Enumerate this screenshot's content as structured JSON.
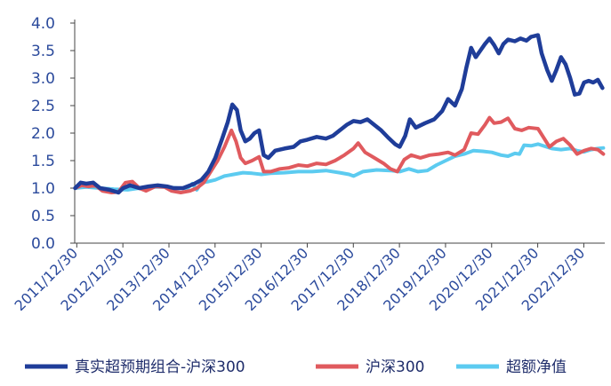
{
  "chart_data": {
    "type": "line",
    "title": "",
    "xlabel": "",
    "ylabel": "",
    "ylim": [
      0,
      4
    ],
    "y_ticks": [
      "0.0",
      "0.5",
      "1.0",
      "1.5",
      "2.0",
      "2.5",
      "3.0",
      "3.5",
      "4.0"
    ],
    "x_tick_labels": [
      "2011/12/30",
      "2012/12/30",
      "2013/12/30",
      "2014/12/30",
      "2015/12/30",
      "2016/12/30",
      "2017/12/30",
      "2018/12/30",
      "2019/12/30",
      "2020/12/30",
      "2021/12/30",
      "2022/12/30"
    ],
    "x_range": [
      2011.95,
      2023.45
    ],
    "grid": false,
    "legend_position": "bottom",
    "series": [
      {
        "name": "真实超预期组合-沪深300",
        "color": "#1F3D99",
        "points": [
          [
            2011.96,
            1.0
          ],
          [
            2012.08,
            1.1
          ],
          [
            2012.2,
            1.08
          ],
          [
            2012.35,
            1.1
          ],
          [
            2012.5,
            1.0
          ],
          [
            2012.7,
            0.97
          ],
          [
            2012.9,
            0.92
          ],
          [
            2013.0,
            1.0
          ],
          [
            2013.15,
            1.05
          ],
          [
            2013.35,
            1.0
          ],
          [
            2013.55,
            1.03
          ],
          [
            2013.75,
            1.05
          ],
          [
            2013.95,
            1.03
          ],
          [
            2014.1,
            1.0
          ],
          [
            2014.3,
            1.0
          ],
          [
            2014.55,
            1.08
          ],
          [
            2014.7,
            1.15
          ],
          [
            2014.85,
            1.3
          ],
          [
            2015.0,
            1.55
          ],
          [
            2015.15,
            1.9
          ],
          [
            2015.27,
            2.2
          ],
          [
            2015.37,
            2.52
          ],
          [
            2015.47,
            2.42
          ],
          [
            2015.55,
            2.05
          ],
          [
            2015.65,
            1.85
          ],
          [
            2015.75,
            1.9
          ],
          [
            2015.85,
            2.0
          ],
          [
            2015.95,
            2.05
          ],
          [
            2016.05,
            1.6
          ],
          [
            2016.15,
            1.55
          ],
          [
            2016.3,
            1.68
          ],
          [
            2016.5,
            1.72
          ],
          [
            2016.7,
            1.75
          ],
          [
            2016.85,
            1.85
          ],
          [
            2017.0,
            1.88
          ],
          [
            2017.2,
            1.93
          ],
          [
            2017.4,
            1.9
          ],
          [
            2017.55,
            1.95
          ],
          [
            2017.7,
            2.05
          ],
          [
            2017.85,
            2.15
          ],
          [
            2018.0,
            2.22
          ],
          [
            2018.15,
            2.2
          ],
          [
            2018.3,
            2.25
          ],
          [
            2018.45,
            2.15
          ],
          [
            2018.6,
            2.05
          ],
          [
            2018.75,
            1.92
          ],
          [
            2018.9,
            1.8
          ],
          [
            2019.0,
            1.75
          ],
          [
            2019.12,
            1.95
          ],
          [
            2019.22,
            2.25
          ],
          [
            2019.35,
            2.1
          ],
          [
            2019.55,
            2.18
          ],
          [
            2019.75,
            2.25
          ],
          [
            2019.92,
            2.4
          ],
          [
            2020.05,
            2.62
          ],
          [
            2020.2,
            2.5
          ],
          [
            2020.35,
            2.8
          ],
          [
            2020.45,
            3.2
          ],
          [
            2020.55,
            3.55
          ],
          [
            2020.65,
            3.38
          ],
          [
            2020.75,
            3.5
          ],
          [
            2020.85,
            3.62
          ],
          [
            2020.95,
            3.72
          ],
          [
            2021.05,
            3.6
          ],
          [
            2021.15,
            3.45
          ],
          [
            2021.25,
            3.62
          ],
          [
            2021.35,
            3.7
          ],
          [
            2021.5,
            3.67
          ],
          [
            2021.62,
            3.72
          ],
          [
            2021.75,
            3.68
          ],
          [
            2021.85,
            3.75
          ],
          [
            2022.0,
            3.78
          ],
          [
            2022.08,
            3.45
          ],
          [
            2022.2,
            3.15
          ],
          [
            2022.3,
            2.95
          ],
          [
            2022.4,
            3.15
          ],
          [
            2022.5,
            3.38
          ],
          [
            2022.6,
            3.25
          ],
          [
            2022.7,
            3.0
          ],
          [
            2022.8,
            2.7
          ],
          [
            2022.9,
            2.72
          ],
          [
            2023.0,
            2.92
          ],
          [
            2023.1,
            2.95
          ],
          [
            2023.2,
            2.92
          ],
          [
            2023.3,
            2.97
          ],
          [
            2023.4,
            2.82
          ]
        ]
      },
      {
        "name": "沪深300",
        "color": "#E05A5E",
        "points": [
          [
            2011.96,
            1.0
          ],
          [
            2012.1,
            1.05
          ],
          [
            2012.25,
            1.03
          ],
          [
            2012.4,
            1.05
          ],
          [
            2012.55,
            0.95
          ],
          [
            2012.75,
            0.92
          ],
          [
            2012.9,
            0.93
          ],
          [
            2013.05,
            1.1
          ],
          [
            2013.2,
            1.12
          ],
          [
            2013.35,
            1.0
          ],
          [
            2013.5,
            0.95
          ],
          [
            2013.7,
            1.03
          ],
          [
            2013.9,
            1.02
          ],
          [
            2014.05,
            0.95
          ],
          [
            2014.25,
            0.92
          ],
          [
            2014.45,
            0.95
          ],
          [
            2014.6,
            1.0
          ],
          [
            2014.75,
            1.1
          ],
          [
            2014.9,
            1.3
          ],
          [
            2015.05,
            1.5
          ],
          [
            2015.2,
            1.75
          ],
          [
            2015.35,
            2.05
          ],
          [
            2015.45,
            1.85
          ],
          [
            2015.55,
            1.55
          ],
          [
            2015.65,
            1.45
          ],
          [
            2015.8,
            1.5
          ],
          [
            2015.95,
            1.57
          ],
          [
            2016.05,
            1.3
          ],
          [
            2016.2,
            1.3
          ],
          [
            2016.4,
            1.35
          ],
          [
            2016.6,
            1.37
          ],
          [
            2016.8,
            1.42
          ],
          [
            2017.0,
            1.4
          ],
          [
            2017.2,
            1.45
          ],
          [
            2017.4,
            1.43
          ],
          [
            2017.6,
            1.5
          ],
          [
            2017.8,
            1.6
          ],
          [
            2018.0,
            1.72
          ],
          [
            2018.1,
            1.82
          ],
          [
            2018.25,
            1.65
          ],
          [
            2018.45,
            1.55
          ],
          [
            2018.65,
            1.45
          ],
          [
            2018.8,
            1.35
          ],
          [
            2018.95,
            1.3
          ],
          [
            2019.1,
            1.52
          ],
          [
            2019.25,
            1.6
          ],
          [
            2019.45,
            1.55
          ],
          [
            2019.65,
            1.6
          ],
          [
            2019.85,
            1.62
          ],
          [
            2020.05,
            1.65
          ],
          [
            2020.2,
            1.6
          ],
          [
            2020.4,
            1.7
          ],
          [
            2020.55,
            2.0
          ],
          [
            2020.7,
            1.98
          ],
          [
            2020.85,
            2.15
          ],
          [
            2020.95,
            2.28
          ],
          [
            2021.05,
            2.18
          ],
          [
            2021.2,
            2.2
          ],
          [
            2021.35,
            2.27
          ],
          [
            2021.5,
            2.08
          ],
          [
            2021.65,
            2.05
          ],
          [
            2021.8,
            2.1
          ],
          [
            2022.0,
            2.08
          ],
          [
            2022.1,
            1.95
          ],
          [
            2022.25,
            1.75
          ],
          [
            2022.4,
            1.85
          ],
          [
            2022.55,
            1.9
          ],
          [
            2022.7,
            1.78
          ],
          [
            2022.85,
            1.62
          ],
          [
            2023.0,
            1.68
          ],
          [
            2023.15,
            1.72
          ],
          [
            2023.3,
            1.7
          ],
          [
            2023.42,
            1.62
          ]
        ]
      },
      {
        "name": "超额净值",
        "color": "#5CCBF0",
        "points": [
          [
            2011.96,
            1.0
          ],
          [
            2012.2,
            1.02
          ],
          [
            2012.5,
            1.0
          ],
          [
            2012.8,
            0.98
          ],
          [
            2013.1,
            0.97
          ],
          [
            2013.35,
            1.0
          ],
          [
            2013.6,
            1.02
          ],
          [
            2013.9,
            1.02
          ],
          [
            2014.2,
            1.0
          ],
          [
            2014.4,
            1.0
          ],
          [
            2014.5,
            1.08
          ],
          [
            2014.6,
            0.97
          ],
          [
            2014.7,
            1.1
          ],
          [
            2014.85,
            1.12
          ],
          [
            2015.0,
            1.15
          ],
          [
            2015.2,
            1.22
          ],
          [
            2015.4,
            1.25
          ],
          [
            2015.6,
            1.28
          ],
          [
            2015.8,
            1.27
          ],
          [
            2016.0,
            1.25
          ],
          [
            2016.2,
            1.27
          ],
          [
            2016.5,
            1.28
          ],
          [
            2016.8,
            1.3
          ],
          [
            2017.1,
            1.3
          ],
          [
            2017.4,
            1.32
          ],
          [
            2017.7,
            1.28
          ],
          [
            2017.9,
            1.25
          ],
          [
            2018.0,
            1.22
          ],
          [
            2018.2,
            1.3
          ],
          [
            2018.5,
            1.33
          ],
          [
            2018.8,
            1.32
          ],
          [
            2019.0,
            1.3
          ],
          [
            2019.2,
            1.35
          ],
          [
            2019.4,
            1.3
          ],
          [
            2019.6,
            1.32
          ],
          [
            2019.8,
            1.42
          ],
          [
            2020.0,
            1.5
          ],
          [
            2020.2,
            1.58
          ],
          [
            2020.4,
            1.62
          ],
          [
            2020.6,
            1.68
          ],
          [
            2020.8,
            1.67
          ],
          [
            2021.0,
            1.65
          ],
          [
            2021.2,
            1.6
          ],
          [
            2021.35,
            1.58
          ],
          [
            2021.5,
            1.63
          ],
          [
            2021.6,
            1.62
          ],
          [
            2021.7,
            1.78
          ],
          [
            2021.85,
            1.77
          ],
          [
            2022.0,
            1.8
          ],
          [
            2022.15,
            1.76
          ],
          [
            2022.3,
            1.72
          ],
          [
            2022.5,
            1.7
          ],
          [
            2022.7,
            1.72
          ],
          [
            2022.85,
            1.68
          ],
          [
            2023.0,
            1.66
          ],
          [
            2023.15,
            1.7
          ],
          [
            2023.3,
            1.72
          ],
          [
            2023.42,
            1.73
          ]
        ]
      }
    ]
  }
}
